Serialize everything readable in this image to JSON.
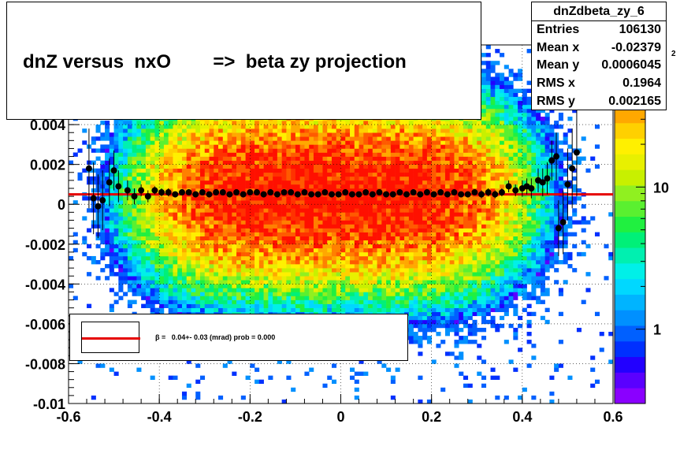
{
  "title": "dnZ versus  nxO        =>  beta zy projection",
  "stats": {
    "name": "dnZdbeta_zy_6",
    "rows": [
      {
        "key": "Entries",
        "value": "106130"
      },
      {
        "key": "Mean x",
        "value": "-0.02379"
      },
      {
        "key": "Mean y",
        "value": "0.0006045"
      },
      {
        "key": "RMS x",
        "value": "0.1964"
      },
      {
        "key": "RMS y",
        "value": "0.002165"
      }
    ]
  },
  "legend": {
    "text": "β =   0.04+- 0.03 (mrad) prob = 0.000",
    "line_color": "#e60000"
  },
  "colors": {
    "fit_line": "#e60000",
    "points": "#000000",
    "palette": [
      "#8a00ff",
      "#5a00ff",
      "#2200ff",
      "#0030ff",
      "#0060ff",
      "#0090ff",
      "#00b4ff",
      "#00d8ff",
      "#00f0e8",
      "#00f0b0",
      "#00f078",
      "#20f040",
      "#5af030",
      "#90f020",
      "#c8f000",
      "#e8f000",
      "#fff000",
      "#ffd000",
      "#ffa800",
      "#ff8000",
      "#ff5a00",
      "#ff3200",
      "#ff1000"
    ]
  },
  "chart_data": {
    "type": "heatmap",
    "title": "dnZ versus  nxO        =>  beta zy projection",
    "xlabel": "",
    "ylabel": "",
    "xlim": [
      -0.6,
      0.6
    ],
    "ylim": [
      -0.01,
      0.008
    ],
    "x_ticks": [
      "-0.6",
      "-0.4",
      "-0.2",
      "0",
      "0.2",
      "0.4",
      "0.6"
    ],
    "x_tick_values": [
      -0.6,
      -0.4,
      -0.2,
      0,
      0.2,
      0.4,
      0.6
    ],
    "y_ticks": [
      "-0.01",
      "-0.008",
      "-0.006",
      "-0.004",
      "-0.002",
      "0",
      "0.002",
      "0.004"
    ],
    "y_tick_values": [
      -0.01,
      -0.008,
      -0.006,
      -0.004,
      -0.002,
      0,
      0.002,
      0.004
    ],
    "color_scale": {
      "type": "log",
      "labels": [
        "1",
        "10"
      ],
      "values": [
        1,
        10
      ],
      "range": [
        0.3,
        100
      ],
      "partial_label": "2"
    },
    "grid": true,
    "legend_position": "bottom-left",
    "fit_line": {
      "y": 0.0005,
      "label": "β =   0.04+- 0.03 (mrad) prob = 0.000"
    },
    "profile_points": [
      {
        "x": -0.555,
        "y": 0.0018,
        "err": 0.002
      },
      {
        "x": -0.545,
        "y": 0.0003,
        "err": 0.0018
      },
      {
        "x": -0.535,
        "y": -0.0001,
        "err": 0.0016
      },
      {
        "x": -0.525,
        "y": 0.0002,
        "err": 0.0015
      },
      {
        "x": -0.51,
        "y": 0.0011,
        "err": 0.0012
      },
      {
        "x": -0.5,
        "y": 0.0017,
        "err": 0.001
      },
      {
        "x": -0.49,
        "y": 0.0009,
        "err": 0.0008
      },
      {
        "x": -0.47,
        "y": 0.0007,
        "err": 0.0005
      },
      {
        "x": -0.455,
        "y": 0.0004,
        "err": 0.0004
      },
      {
        "x": -0.44,
        "y": 0.0007,
        "err": 0.0003
      },
      {
        "x": -0.425,
        "y": 0.0004,
        "err": 0.0003
      },
      {
        "x": -0.41,
        "y": 0.0007,
        "err": 0.0002
      },
      {
        "x": -0.395,
        "y": 0.0006,
        "err": 0.0002
      },
      {
        "x": -0.38,
        "y": 0.0006,
        "err": 0.0002
      },
      {
        "x": -0.365,
        "y": 0.0005,
        "err": 0.0001
      },
      {
        "x": -0.35,
        "y": 0.0006,
        "err": 0.0001
      },
      {
        "x": -0.335,
        "y": 0.0006,
        "err": 0.0001
      },
      {
        "x": -0.32,
        "y": 0.0005,
        "err": 0.0001
      },
      {
        "x": -0.305,
        "y": 0.0006,
        "err": 0.0001
      },
      {
        "x": -0.29,
        "y": 0.0005,
        "err": 0.0001
      },
      {
        "x": -0.275,
        "y": 0.0006,
        "err": 0.0001
      },
      {
        "x": -0.26,
        "y": 0.0006,
        "err": 0.0001
      },
      {
        "x": -0.245,
        "y": 0.0005,
        "err": 0.0001
      },
      {
        "x": -0.23,
        "y": 0.0006,
        "err": 0.0001
      },
      {
        "x": -0.215,
        "y": 0.0005,
        "err": 0.0001
      },
      {
        "x": -0.2,
        "y": 0.0006,
        "err": 0.0001
      },
      {
        "x": -0.185,
        "y": 0.0006,
        "err": 0.0001
      },
      {
        "x": -0.17,
        "y": 0.0005,
        "err": 0.0001
      },
      {
        "x": -0.155,
        "y": 0.0006,
        "err": 0.0001
      },
      {
        "x": -0.14,
        "y": 0.0005,
        "err": 0.0001
      },
      {
        "x": -0.125,
        "y": 0.0006,
        "err": 0.0001
      },
      {
        "x": -0.11,
        "y": 0.0006,
        "err": 0.0001
      },
      {
        "x": -0.095,
        "y": 0.0005,
        "err": 0.0001
      },
      {
        "x": -0.08,
        "y": 0.0006,
        "err": 0.0001
      },
      {
        "x": -0.065,
        "y": 0.0005,
        "err": 0.0001
      },
      {
        "x": -0.05,
        "y": 0.0005,
        "err": 0.0001
      },
      {
        "x": -0.035,
        "y": 0.0006,
        "err": 0.0001
      },
      {
        "x": -0.02,
        "y": 0.0005,
        "err": 0.0001
      },
      {
        "x": -0.005,
        "y": 0.0005,
        "err": 0.0001
      },
      {
        "x": 0.01,
        "y": 0.0006,
        "err": 0.0001
      },
      {
        "x": 0.025,
        "y": 0.0005,
        "err": 0.0001
      },
      {
        "x": 0.04,
        "y": 0.0005,
        "err": 0.0001
      },
      {
        "x": 0.055,
        "y": 0.0006,
        "err": 0.0001
      },
      {
        "x": 0.07,
        "y": 0.0005,
        "err": 0.0001
      },
      {
        "x": 0.085,
        "y": 0.0006,
        "err": 0.0001
      },
      {
        "x": 0.1,
        "y": 0.0005,
        "err": 0.0001
      },
      {
        "x": 0.115,
        "y": 0.0005,
        "err": 0.0001
      },
      {
        "x": 0.13,
        "y": 0.0006,
        "err": 0.0001
      },
      {
        "x": 0.145,
        "y": 0.0005,
        "err": 0.0001
      },
      {
        "x": 0.16,
        "y": 0.0006,
        "err": 0.0001
      },
      {
        "x": 0.175,
        "y": 0.0005,
        "err": 0.0001
      },
      {
        "x": 0.19,
        "y": 0.0006,
        "err": 0.0001
      },
      {
        "x": 0.205,
        "y": 0.0005,
        "err": 0.0001
      },
      {
        "x": 0.22,
        "y": 0.0006,
        "err": 0.0001
      },
      {
        "x": 0.235,
        "y": 0.0005,
        "err": 0.0001
      },
      {
        "x": 0.25,
        "y": 0.0006,
        "err": 0.0001
      },
      {
        "x": 0.265,
        "y": 0.0005,
        "err": 0.0001
      },
      {
        "x": 0.28,
        "y": 0.0005,
        "err": 0.0001
      },
      {
        "x": 0.295,
        "y": 0.0006,
        "err": 0.0001
      },
      {
        "x": 0.31,
        "y": 0.0005,
        "err": 0.0002
      },
      {
        "x": 0.325,
        "y": 0.0006,
        "err": 0.0002
      },
      {
        "x": 0.34,
        "y": 0.0005,
        "err": 0.0002
      },
      {
        "x": 0.355,
        "y": 0.0006,
        "err": 0.0002
      },
      {
        "x": 0.37,
        "y": 0.0009,
        "err": 0.0003
      },
      {
        "x": 0.385,
        "y": 0.0007,
        "err": 0.0003
      },
      {
        "x": 0.4,
        "y": 0.0008,
        "err": 0.0004
      },
      {
        "x": 0.41,
        "y": 0.0009,
        "err": 0.0004
      },
      {
        "x": 0.42,
        "y": 0.0008,
        "err": 0.0005
      },
      {
        "x": 0.435,
        "y": 0.0012,
        "err": 0.0006
      },
      {
        "x": 0.445,
        "y": 0.0011,
        "err": 0.0007
      },
      {
        "x": 0.455,
        "y": 0.0013,
        "err": 0.0008
      },
      {
        "x": 0.465,
        "y": 0.0022,
        "err": 0.001
      },
      {
        "x": 0.475,
        "y": 0.0024,
        "err": 0.0012
      },
      {
        "x": 0.48,
        "y": -0.0012,
        "err": 0.0014
      },
      {
        "x": 0.49,
        "y": -0.0009,
        "err": 0.0016
      },
      {
        "x": 0.5,
        "y": 0.001,
        "err": 0.0018
      },
      {
        "x": 0.51,
        "y": 0.0018,
        "err": 0.002
      },
      {
        "x": 0.52,
        "y": 0.0026,
        "err": 0.0022
      }
    ]
  }
}
